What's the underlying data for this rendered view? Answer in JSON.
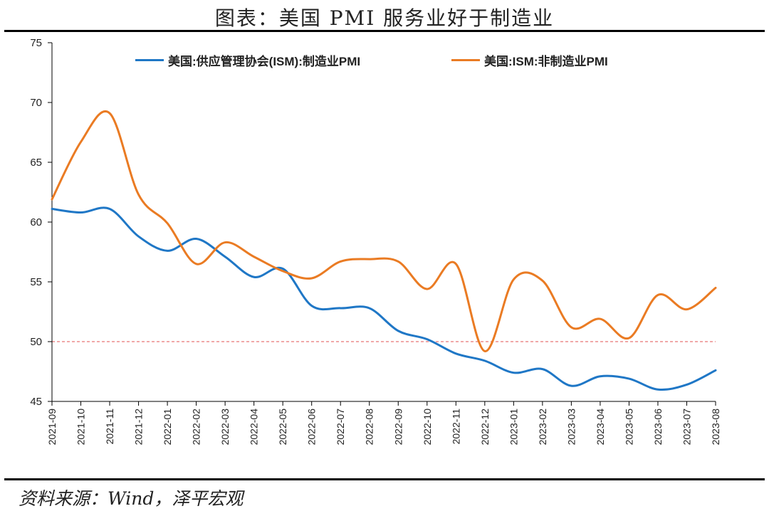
{
  "title": "图表：美国 PMI 服务业好于制造业",
  "source": "资料来源：Wind，泽平宏观",
  "colors": {
    "manufacturing": "#1f77c6",
    "non_manufacturing": "#ea7b23",
    "reference": "#e05050"
  },
  "chart_data": {
    "type": "line",
    "x": [
      "2021-09",
      "2021-10",
      "2021-11",
      "2021-12",
      "2022-01",
      "2022-02",
      "2022-03",
      "2022-04",
      "2022-05",
      "2022-06",
      "2022-07",
      "2022-08",
      "2022-09",
      "2022-10",
      "2022-11",
      "2022-12",
      "2023-01",
      "2023-02",
      "2023-03",
      "2023-04",
      "2023-05",
      "2023-06",
      "2023-07",
      "2023-08"
    ],
    "ylim": [
      45,
      75
    ],
    "yticks": [
      45,
      50,
      55,
      60,
      65,
      70,
      75
    ],
    "reference_line": 50,
    "legend_position": "top",
    "series": [
      {
        "name": "美国:供应管理协会(ISM):制造业PMI",
        "color": "#1f77c6",
        "values": [
          61.1,
          60.8,
          61.1,
          58.8,
          57.6,
          58.6,
          57.1,
          55.4,
          56.1,
          53.0,
          52.8,
          52.8,
          50.9,
          50.2,
          49.0,
          48.4,
          47.4,
          47.7,
          46.3,
          47.1,
          46.9,
          46.0,
          46.4,
          47.6
        ]
      },
      {
        "name": "美国:ISM:非制造业PMI",
        "color": "#ea7b23",
        "values": [
          61.9,
          66.7,
          69.1,
          62.3,
          59.9,
          56.5,
          58.3,
          57.1,
          55.9,
          55.3,
          56.7,
          56.9,
          56.7,
          54.4,
          56.5,
          49.2,
          55.2,
          55.1,
          51.2,
          51.9,
          50.3,
          53.9,
          52.7,
          54.5
        ]
      }
    ]
  }
}
